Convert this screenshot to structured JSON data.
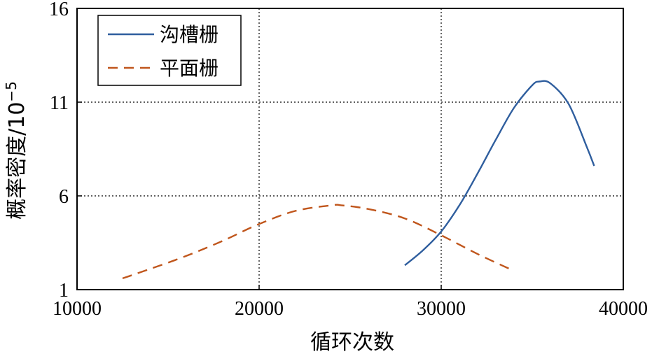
{
  "chart_data": {
    "type": "line",
    "title": "",
    "xlabel": "循环次数",
    "ylabel": "概率密度/10",
    "ylabel_superscript": "−5",
    "xlim": [
      10000,
      40000
    ],
    "ylim": [
      1,
      16
    ],
    "xticks": [
      10000,
      20000,
      30000,
      40000
    ],
    "yticks": [
      1,
      6,
      11,
      16
    ],
    "x_tick_labels": [
      "10000",
      "20000",
      "30000",
      "40000"
    ],
    "y_tick_labels": [
      "1",
      "6",
      "11",
      "16"
    ],
    "grid": "dotted",
    "grid_x": [
      20000,
      30000
    ],
    "grid_y": [
      6,
      11
    ],
    "legend_position": "top-left",
    "series": [
      {
        "name": "沟槽栅",
        "color": "#2f5e9e",
        "style": "solid",
        "x": [
          28000,
          29000,
          30000,
          31000,
          32000,
          33000,
          34000,
          35000,
          35400,
          36000,
          37000,
          38000,
          38400
        ],
        "y": [
          2.3,
          3.1,
          4.1,
          5.5,
          7.2,
          9.0,
          10.7,
          11.9,
          12.1,
          12.0,
          10.9,
          8.6,
          7.6
        ]
      },
      {
        "name": "平面栅",
        "color": "#c0561c",
        "style": "dashed",
        "x": [
          12500,
          14000,
          16000,
          18000,
          20000,
          22000,
          24000,
          24500,
          26000,
          28000,
          30000,
          32000,
          34000
        ],
        "y": [
          1.6,
          2.1,
          2.8,
          3.6,
          4.5,
          5.2,
          5.5,
          5.5,
          5.3,
          4.8,
          3.9,
          2.9,
          2.0
        ]
      }
    ]
  }
}
